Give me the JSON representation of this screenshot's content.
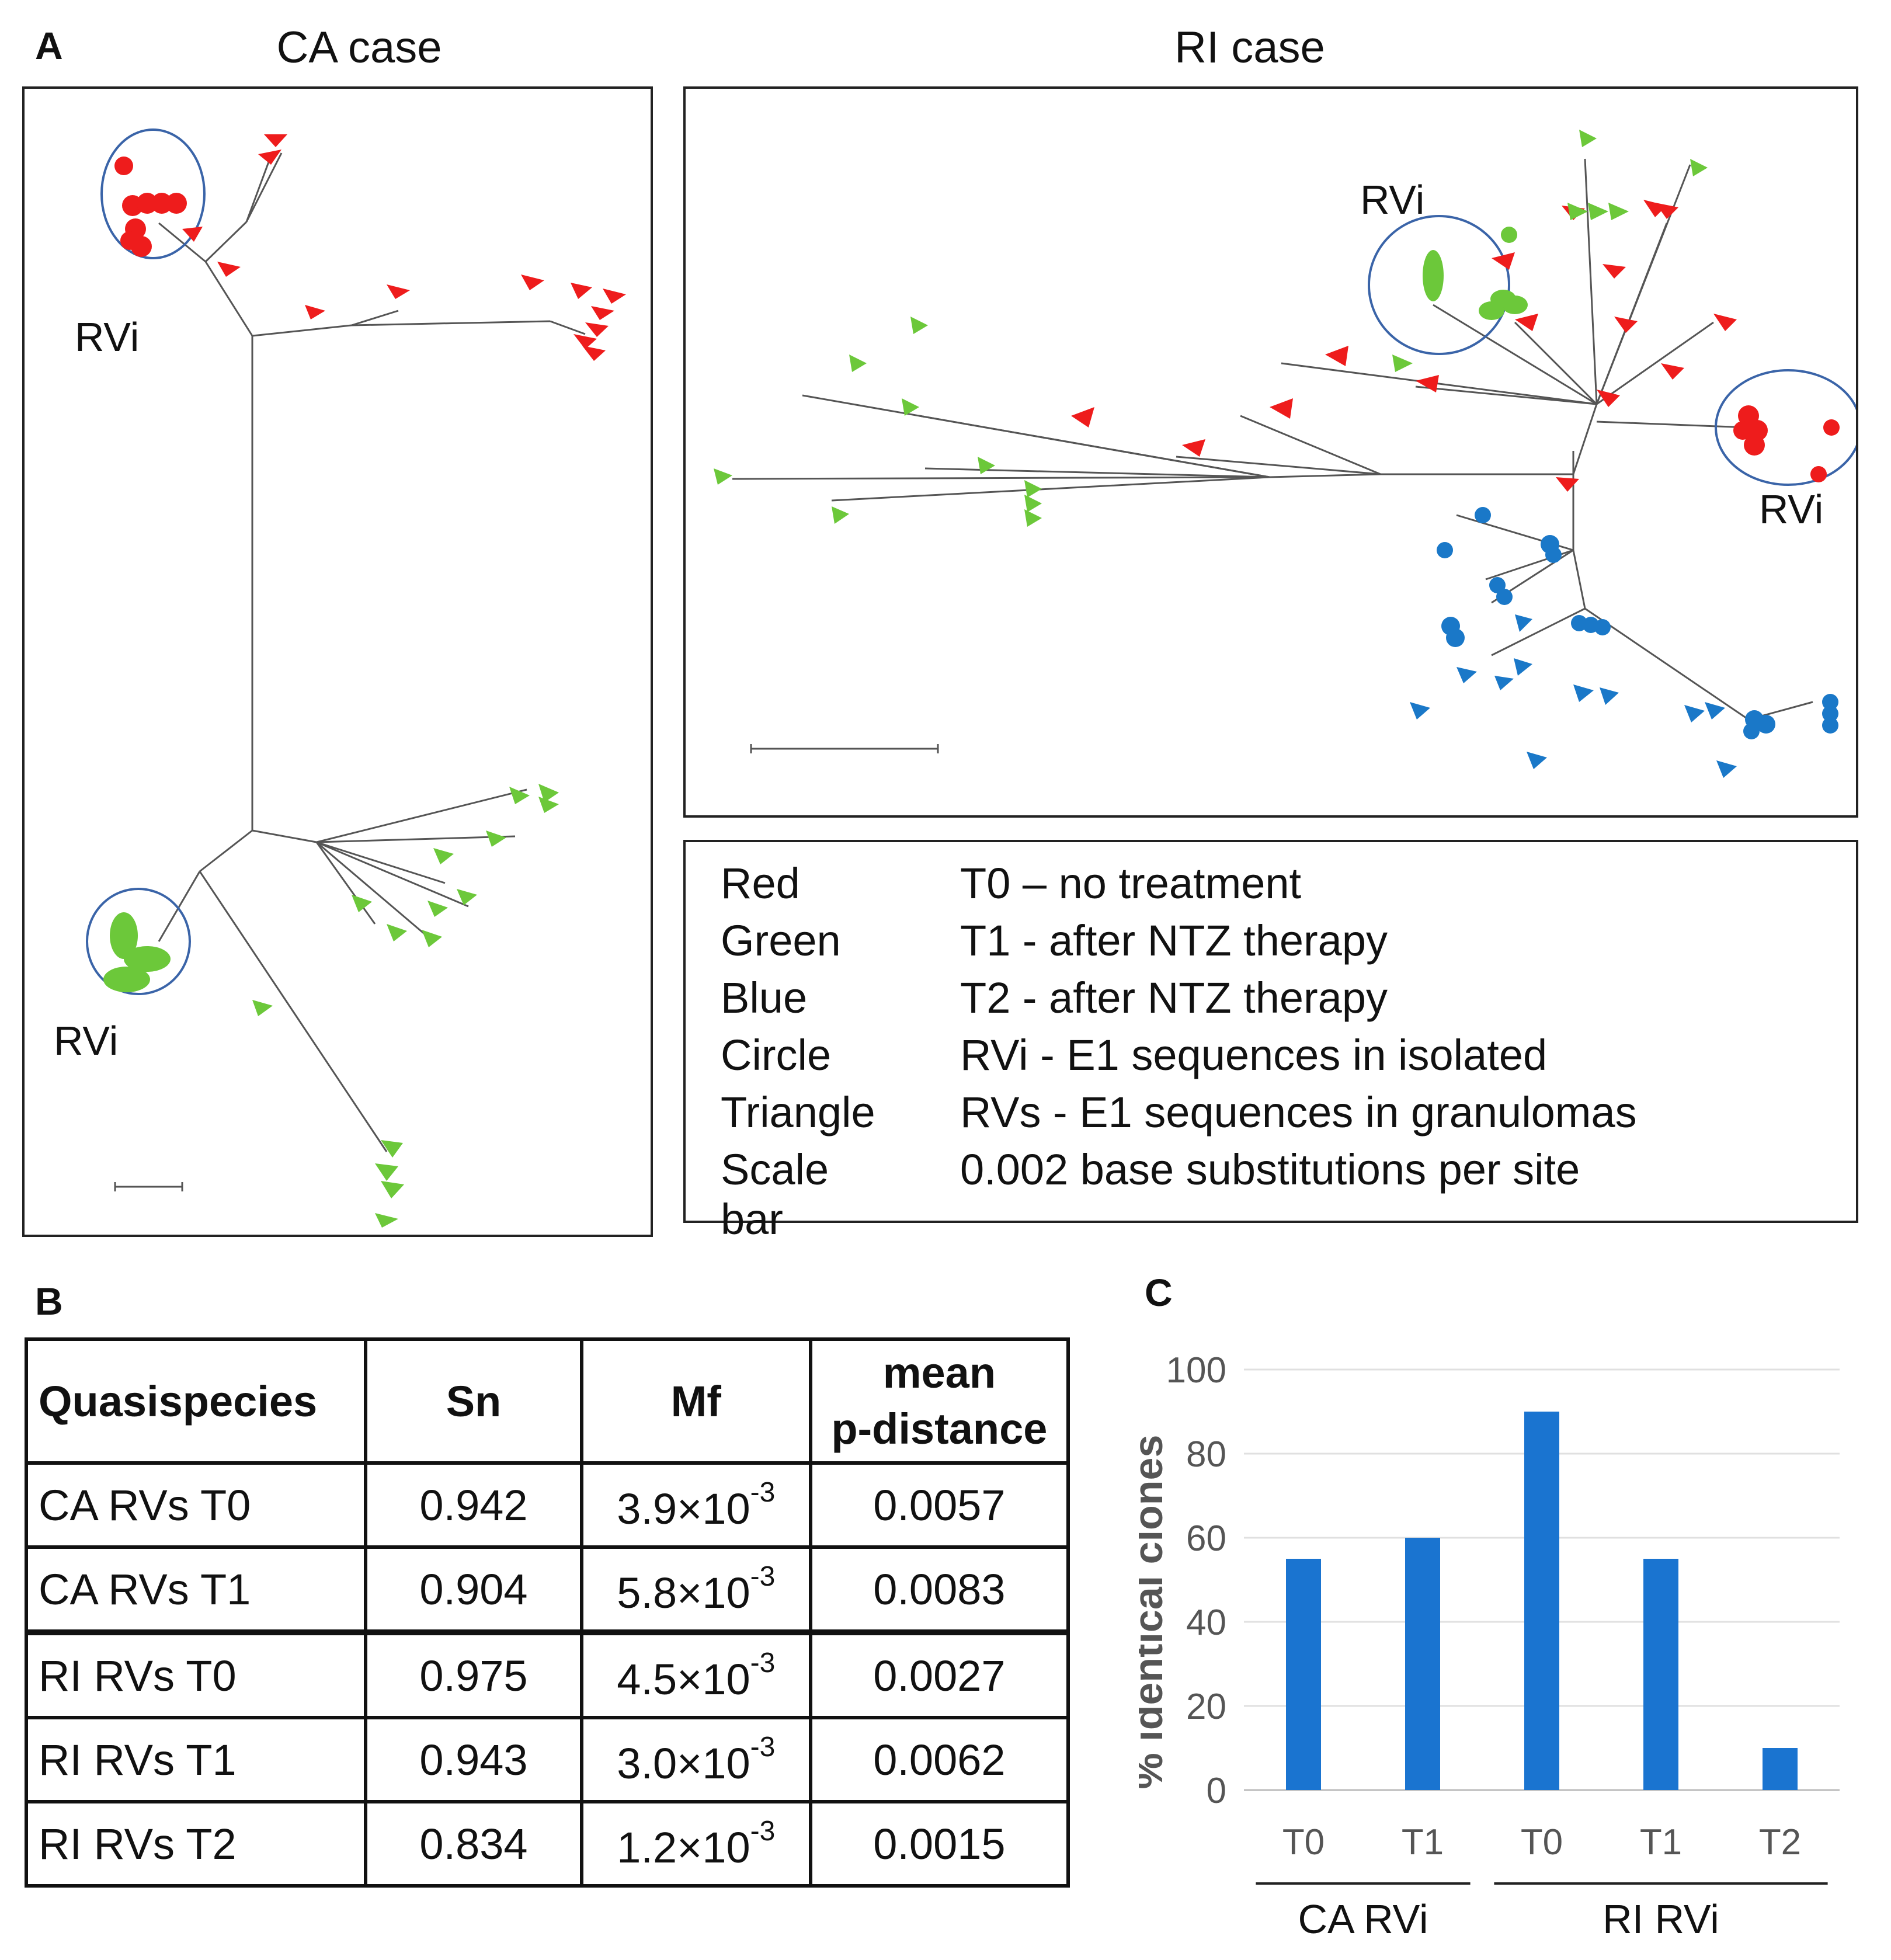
{
  "panel_a": {
    "letter": "A",
    "ca_title": "CA case",
    "ri_title": "RI case",
    "ca_rvi_top": "RVi",
    "ca_rvi_bottom": "RVi",
    "ri_rvi_left": "RVi",
    "ri_rvi_right": "RVi",
    "colors": {
      "red": "#ee1c1c",
      "green": "#6cc83a",
      "blue": "#1a78c8",
      "circle": "#3a64a8"
    }
  },
  "legend": {
    "rows": [
      {
        "key": "Red",
        "value": "T0 – no treatment"
      },
      {
        "key": "Green",
        "value": "T1 - after NTZ therapy"
      },
      {
        "key": "Blue",
        "value": "T2 - after NTZ therapy"
      },
      {
        "key": "Circle",
        "value": "RVi - E1 sequences in isolated"
      },
      {
        "key": "Triangle",
        "value": "RVs - E1 sequences in granulomas"
      },
      {
        "key": "Scale bar",
        "value": "0.002 base substitutions per site"
      }
    ]
  },
  "panel_b": {
    "letter": "B",
    "headers": {
      "quasispecies": "Quasispecies",
      "sn": "Sn",
      "mf": "Mf",
      "pdist_line1": "mean",
      "pdist_line2": "p-distance"
    },
    "times": "×",
    "ten": "10",
    "exponent": "-3",
    "rows": [
      {
        "name": "CA RVs T0",
        "sn": "0.942",
        "mf": "3.9",
        "pdist": "0.0057"
      },
      {
        "name": "CA RVs T1",
        "sn": "0.904",
        "mf": "5.8",
        "pdist": "0.0083"
      },
      {
        "name": "RI RVs T0",
        "sn": "0.975",
        "mf": "4.5",
        "pdist": "0.0027"
      },
      {
        "name": "RI RVs T1",
        "sn": "0.943",
        "mf": "3.0",
        "pdist": "0.0062"
      },
      {
        "name": "RI RVs T2",
        "sn": "0.834",
        "mf": "1.2",
        "pdist": "0.0015"
      }
    ]
  },
  "panel_c": {
    "letter": "C",
    "group_labels": [
      "CA RVi",
      "RI RVi"
    ]
  },
  "chart_data": {
    "type": "bar",
    "categories": [
      "T0",
      "T1",
      "T0",
      "T1",
      "T2"
    ],
    "groups": [
      {
        "name": "CA RVi",
        "indices": [
          0,
          1
        ]
      },
      {
        "name": "RI RVi",
        "indices": [
          2,
          3,
          4
        ]
      }
    ],
    "values": [
      55,
      60,
      90,
      55,
      10
    ],
    "ylabel": "% identical clones",
    "yticks": [
      0,
      20,
      40,
      60,
      80,
      100
    ],
    "ylim": [
      0,
      100
    ],
    "grid": true,
    "bar_color": "#1a74d0"
  }
}
